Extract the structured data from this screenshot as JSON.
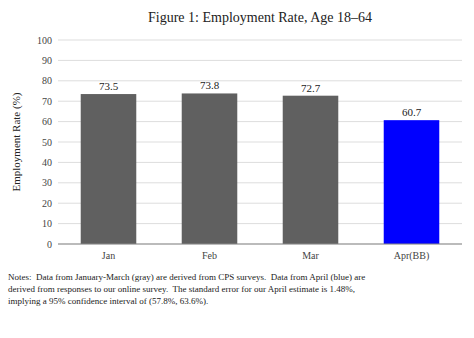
{
  "chart_data": {
    "type": "bar",
    "title": "Figure 1: Employment Rate, Age 18–64",
    "categories": [
      "Jan",
      "Feb",
      "Mar",
      "Apr(BB)"
    ],
    "values": [
      73.5,
      73.8,
      72.7,
      60.7
    ],
    "colors": [
      "#606060",
      "#606060",
      "#606060",
      "#0000ff"
    ],
    "ylabel": "Employment Rate (%)",
    "ylim": [
      0,
      100
    ],
    "yticks": [
      0,
      10,
      20,
      30,
      40,
      50,
      60,
      70,
      80,
      90,
      100
    ],
    "grid": true,
    "data_labels": true,
    "annotations": [
      "Notes:  Data from January-March (gray) are derived from CPS surveys.  Data from April (blue) are",
      "derived from responses to our online survey.  The standard error for our April estimate is 1.48%,",
      "implying a 95% confidence interval of (57.8%, 63.6%)."
    ]
  }
}
